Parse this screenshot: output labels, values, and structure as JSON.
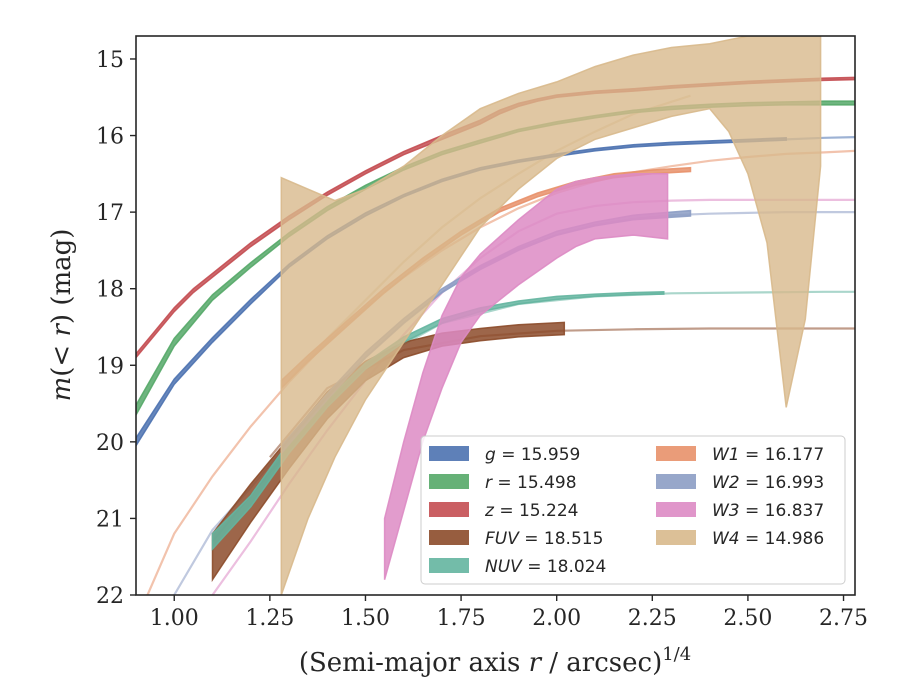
{
  "chart_data": {
    "type": "line",
    "xlabel": "(Semi-major axis r / arcsec)",
    "xlabel_italic_var": "r",
    "xlabel_prefix": "(Semi-major axis ",
    "xlabel_suffix": " / arcsec)",
    "xlabel_exponent": "1/4",
    "ylabel_prefix": "m(",
    "ylabel_var": "< r",
    "ylabel_suffix": ") (mag)",
    "xlim": [
      0.9,
      2.78
    ],
    "ylim": [
      22.0,
      14.7
    ],
    "y_inverted": true,
    "grid": false,
    "legend_placement": "lower-right",
    "xticks": [
      1.0,
      1.25,
      1.5,
      1.75,
      2.0,
      2.25,
      2.5,
      2.75
    ],
    "xtick_labels": [
      "1.00",
      "1.25",
      "1.50",
      "1.75",
      "2.00",
      "2.25",
      "2.50",
      "2.75"
    ],
    "yticks": [
      15,
      16,
      17,
      18,
      19,
      20,
      21,
      22
    ],
    "ytick_labels": [
      "15",
      "16",
      "17",
      "18",
      "19",
      "20",
      "21",
      "22"
    ],
    "series": [
      {
        "name": "g = 15.959",
        "label_var": "g",
        "label_val": "15.959",
        "color": "#4c72b0",
        "kind": "band",
        "x_measured": [
          0.9,
          1.0,
          1.1,
          1.2,
          1.3,
          1.4,
          1.5,
          1.6,
          1.7,
          1.8,
          1.9,
          2.0,
          2.1,
          2.2,
          2.3,
          2.4,
          2.5,
          2.6
        ],
        "y_measured_low": [
          20.05,
          19.25,
          18.7,
          18.2,
          17.72,
          17.35,
          17.05,
          16.8,
          16.6,
          16.45,
          16.35,
          16.27,
          16.2,
          16.15,
          16.12,
          16.1,
          16.08,
          16.06
        ],
        "y_measured_high": [
          19.95,
          19.18,
          18.64,
          18.14,
          17.68,
          17.31,
          17.01,
          16.77,
          16.57,
          16.42,
          16.32,
          16.24,
          16.17,
          16.12,
          16.09,
          16.07,
          16.05,
          16.03
        ],
        "x_model": [
          2.6,
          2.7,
          2.78
        ],
        "y_model": [
          16.05,
          16.03,
          16.02
        ]
      },
      {
        "name": "r = 15.498",
        "label_var": "r",
        "label_val": "15.498",
        "color": "#55a868",
        "kind": "band",
        "x_measured": [
          0.9,
          1.0,
          1.1,
          1.2,
          1.3,
          1.4,
          1.5,
          1.6,
          1.7,
          1.8,
          1.9,
          2.0,
          2.1,
          2.2,
          2.3,
          2.4,
          2.5,
          2.6,
          2.7,
          2.78
        ],
        "y_measured_low": [
          19.65,
          18.75,
          18.15,
          17.72,
          17.32,
          16.98,
          16.7,
          16.45,
          16.25,
          16.1,
          15.95,
          15.85,
          15.77,
          15.7,
          15.66,
          15.63,
          15.61,
          15.6,
          15.6,
          15.6
        ],
        "y_measured_high": [
          19.52,
          18.65,
          18.08,
          17.66,
          17.27,
          16.93,
          16.65,
          16.41,
          16.21,
          16.06,
          15.92,
          15.82,
          15.74,
          15.67,
          15.62,
          15.59,
          15.57,
          15.56,
          15.55,
          15.55
        ],
        "x_model": [],
        "y_model": []
      },
      {
        "name": "z = 15.224",
        "label_var": "z",
        "label_val": "15.224",
        "color": "#c44e52",
        "kind": "band",
        "x_measured": [
          0.9,
          0.95,
          1.0,
          1.05,
          1.1,
          1.2,
          1.3,
          1.4,
          1.5,
          1.6,
          1.7,
          1.8,
          1.85,
          1.9,
          1.95,
          2.0,
          2.1,
          2.2,
          2.3,
          2.4,
          2.5,
          2.6,
          2.7,
          2.78
        ],
        "y_measured_low": [
          18.9,
          18.6,
          18.3,
          18.05,
          17.85,
          17.45,
          17.1,
          16.78,
          16.5,
          16.25,
          16.05,
          15.85,
          15.72,
          15.62,
          15.55,
          15.5,
          15.45,
          15.42,
          15.38,
          15.35,
          15.32,
          15.3,
          15.28,
          15.27
        ],
        "y_measured_high": [
          18.85,
          18.55,
          18.25,
          18.0,
          17.8,
          17.4,
          17.05,
          16.74,
          16.46,
          16.21,
          16.0,
          15.8,
          15.67,
          15.58,
          15.52,
          15.47,
          15.42,
          15.39,
          15.35,
          15.32,
          15.29,
          15.27,
          15.25,
          15.24
        ],
        "x_model": [],
        "y_model": []
      },
      {
        "name": "FUV = 18.515",
        "label_var": "FUV",
        "label_val": "18.515",
        "color": "#8c4b2a",
        "kind": "band",
        "x_measured": [
          1.1,
          1.2,
          1.3,
          1.4,
          1.5,
          1.6,
          1.7,
          1.8,
          1.9,
          2.02
        ],
        "y_measured_low": [
          21.8,
          21.05,
          20.35,
          19.7,
          19.2,
          18.9,
          18.75,
          18.68,
          18.63,
          18.6
        ],
        "y_measured_high": [
          21.2,
          20.55,
          19.95,
          19.35,
          18.95,
          18.7,
          18.58,
          18.52,
          18.47,
          18.44
        ],
        "x_model": [
          1.25,
          1.4,
          1.6,
          1.8,
          2.0,
          2.2,
          2.4,
          2.6,
          2.78
        ],
        "y_model": [
          20.2,
          19.3,
          18.8,
          18.62,
          18.55,
          18.53,
          18.52,
          18.52,
          18.52
        ]
      },
      {
        "name": "NUV = 18.024",
        "label_var": "NUV",
        "label_val": "18.024",
        "color": "#64b5a0",
        "kind": "band",
        "x_measured": [
          1.1,
          1.2,
          1.3,
          1.4,
          1.5,
          1.6,
          1.7,
          1.8,
          1.9,
          2.0,
          2.1,
          2.2,
          2.28
        ],
        "y_measured_low": [
          21.4,
          20.85,
          20.15,
          19.55,
          19.05,
          18.7,
          18.45,
          18.3,
          18.2,
          18.14,
          18.1,
          18.08,
          18.07
        ],
        "y_measured_high": [
          21.2,
          20.7,
          20.0,
          19.45,
          18.97,
          18.63,
          18.39,
          18.25,
          18.16,
          18.1,
          18.07,
          18.05,
          18.04
        ],
        "x_model": [
          1.1,
          1.3,
          1.5,
          1.7,
          1.9,
          2.1,
          2.3,
          2.5,
          2.7,
          2.78
        ],
        "y_model": [
          21.3,
          20.1,
          19.0,
          18.45,
          18.2,
          18.1,
          18.06,
          18.05,
          18.04,
          18.04
        ]
      },
      {
        "name": "W1 = 16.177",
        "label_var": "W1",
        "label_val": "16.177",
        "color": "#e8916a",
        "kind": "band",
        "x_measured": [
          1.28,
          1.35,
          1.45,
          1.55,
          1.65,
          1.75,
          1.85,
          1.95,
          2.05,
          2.15,
          2.25,
          2.35
        ],
        "y_measured_low": [
          19.3,
          18.95,
          18.5,
          18.05,
          17.65,
          17.3,
          17.0,
          16.8,
          16.65,
          16.55,
          16.5,
          16.47
        ],
        "y_measured_high": [
          19.2,
          18.87,
          18.43,
          17.99,
          17.6,
          17.25,
          16.95,
          16.75,
          16.6,
          16.5,
          16.45,
          16.42
        ],
        "x_model": [
          0.93,
          1.0,
          1.1,
          1.2,
          1.3,
          1.4,
          1.5,
          1.6,
          1.7,
          1.8,
          1.9,
          2.0,
          2.1,
          2.2,
          2.3,
          2.4,
          2.5,
          2.6,
          2.7,
          2.78
        ],
        "y_model": [
          22.0,
          21.2,
          20.45,
          19.8,
          19.22,
          18.7,
          18.25,
          17.85,
          17.5,
          17.2,
          16.95,
          16.75,
          16.6,
          16.48,
          16.4,
          16.33,
          16.28,
          16.24,
          16.22,
          16.2
        ]
      },
      {
        "name": "W2 = 16.993",
        "label_var": "W2",
        "label_val": "16.993",
        "color": "#8c9dc4",
        "kind": "band",
        "x_measured": [
          1.28,
          1.4,
          1.5,
          1.6,
          1.7,
          1.8,
          1.9,
          2.0,
          2.1,
          2.2,
          2.35
        ],
        "y_measured_low": [
          20.15,
          19.45,
          18.9,
          18.45,
          18.05,
          17.75,
          17.5,
          17.3,
          17.18,
          17.1,
          17.05
        ],
        "y_measured_high": [
          20.05,
          19.37,
          18.83,
          18.39,
          18.0,
          17.7,
          17.45,
          17.25,
          17.13,
          17.04,
          16.98
        ],
        "x_model": [
          1.0,
          1.1,
          1.2,
          1.3,
          1.4,
          1.5,
          1.6,
          1.7,
          1.8,
          1.9,
          2.0,
          2.1,
          2.2,
          2.3,
          2.4,
          2.5,
          2.6,
          2.7,
          2.78
        ],
        "y_model": [
          22.0,
          21.15,
          20.6,
          20.0,
          19.4,
          18.9,
          18.45,
          18.05,
          17.72,
          17.48,
          17.3,
          17.17,
          17.09,
          17.04,
          17.02,
          17.01,
          17.0,
          17.0,
          17.0
        ]
      },
      {
        "name": "W3 = 16.837",
        "label_var": "W3",
        "label_val": "16.837",
        "color": "#dd8bc4",
        "kind": "band",
        "x_measured": [
          1.55,
          1.6,
          1.65,
          1.7,
          1.75,
          1.8,
          1.9,
          2.0,
          2.05,
          2.1,
          2.2,
          2.29
        ],
        "y_measured_low": [
          21.8,
          20.9,
          20.0,
          19.3,
          18.7,
          18.35,
          17.95,
          17.6,
          17.45,
          17.35,
          17.3,
          17.35
        ],
        "y_measured_high": [
          21.0,
          20.0,
          19.1,
          18.35,
          17.85,
          17.55,
          17.1,
          16.7,
          16.6,
          16.55,
          16.5,
          16.5
        ],
        "x_model": [
          1.1,
          1.2,
          1.3,
          1.4,
          1.5,
          1.6,
          1.7,
          1.8,
          1.9,
          2.0,
          2.1,
          2.2,
          2.3,
          2.4,
          2.5,
          2.6,
          2.7,
          2.78
        ],
        "y_model": [
          22.0,
          21.3,
          20.55,
          19.85,
          19.2,
          18.6,
          18.05,
          17.6,
          17.25,
          17.02,
          16.92,
          16.87,
          16.85,
          16.84,
          16.84,
          16.84,
          16.84,
          16.84
        ]
      },
      {
        "name": "W4 = 14.986",
        "label_var": "W4",
        "label_val": "14.986",
        "color": "#d8b98c",
        "kind": "band",
        "x_measured": [
          1.28,
          1.35,
          1.42,
          1.5,
          1.6,
          1.7,
          1.8,
          1.9,
          2.0,
          2.1,
          2.2,
          2.3,
          2.4,
          2.45,
          2.5,
          2.55,
          2.6,
          2.65,
          2.69
        ],
        "y_measured_low": [
          22.0,
          21.0,
          20.2,
          19.45,
          18.7,
          17.95,
          17.2,
          16.7,
          16.3,
          16.05,
          15.9,
          15.75,
          15.65,
          15.95,
          16.5,
          17.4,
          19.55,
          18.4,
          16.4
        ],
        "y_measured_high": [
          16.55,
          16.7,
          16.85,
          16.7,
          16.4,
          16.0,
          15.65,
          15.45,
          15.3,
          15.1,
          14.95,
          14.85,
          14.8,
          14.75,
          14.7,
          14.7,
          14.7,
          14.7,
          14.7
        ],
        "x_model": [
          1.3,
          1.4,
          1.5,
          1.6,
          1.7,
          1.8,
          1.9,
          2.0,
          2.1,
          2.2,
          2.35
        ],
        "y_model": [
          19.2,
          18.65,
          18.15,
          17.65,
          17.2,
          16.82,
          16.5,
          16.2,
          15.95,
          15.72,
          15.48
        ]
      }
    ]
  }
}
